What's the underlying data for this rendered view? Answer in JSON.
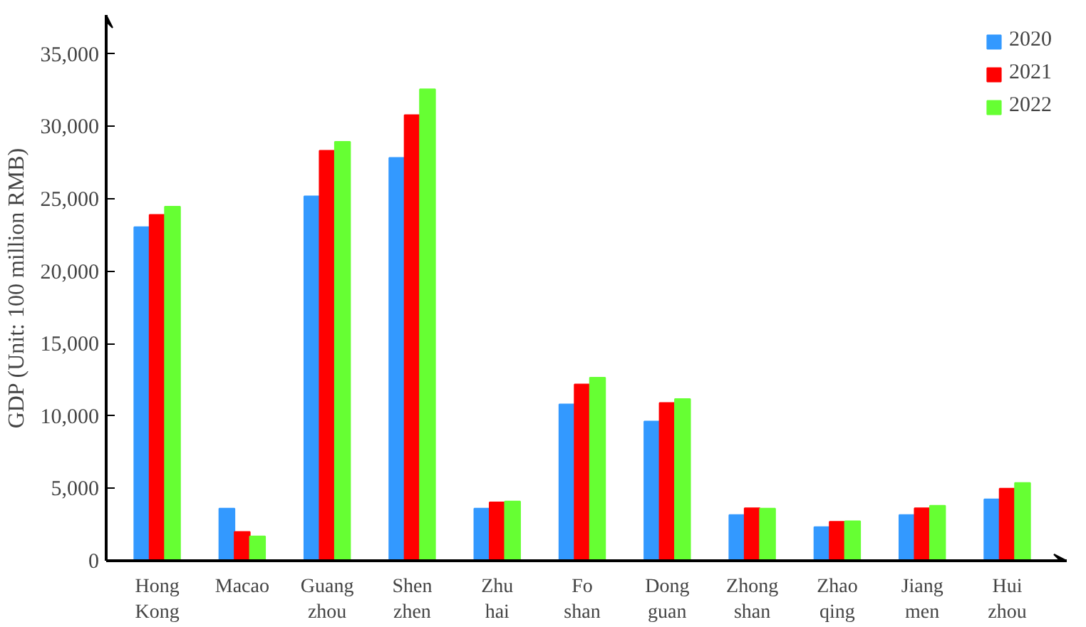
{
  "chart_data": {
    "type": "bar",
    "ylabel": "GDP (Unit: 100 million RMB)",
    "categories": [
      "Hong Kong",
      "Macao",
      "Guang zhou",
      "Shen zhen",
      "Zhu hai",
      "Fo shan",
      "Dong guan",
      "Zhong shan",
      "Zhao qing",
      "Jiang men",
      "Hui zhou"
    ],
    "series": [
      {
        "name": "2020",
        "color": "#3399ff",
        "values": [
          23050,
          3600,
          25170,
          27830,
          3600,
          10800,
          9620,
          3160,
          2320,
          3160,
          4240
        ]
      },
      {
        "name": "2021",
        "color": "#ff0000",
        "values": [
          23890,
          1990,
          28330,
          30790,
          4040,
          12180,
          10900,
          3630,
          2690,
          3630,
          4980
        ]
      },
      {
        "name": "2022",
        "color": "#66ff33",
        "values": [
          24460,
          1680,
          28940,
          32570,
          4100,
          12650,
          11170,
          3600,
          2730,
          3800,
          5380
        ]
      }
    ],
    "ylim": [
      0,
      37700
    ],
    "yticks": [
      {
        "value": 0,
        "label": "0"
      },
      {
        "value": 5000,
        "label": "5,000"
      },
      {
        "value": 10000,
        "label": "10,000"
      },
      {
        "value": 15000,
        "label": "15,000"
      },
      {
        "value": 20000,
        "label": "20,000"
      },
      {
        "value": 25000,
        "label": "25,000"
      },
      {
        "value": 30000,
        "label": "30,000"
      },
      {
        "value": 35000,
        "label": "35,000"
      }
    ],
    "grid": false,
    "legend": "top right"
  }
}
